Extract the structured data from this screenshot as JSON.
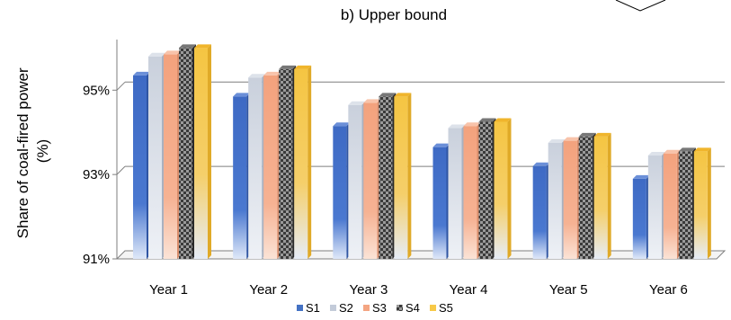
{
  "chart_data": {
    "type": "bar",
    "title": "b) Upper bound",
    "ylabel": "Share of coal-fired power\n(%)",
    "xlabel": "",
    "ylim": [
      91,
      96.2
    ],
    "yticks": [
      91,
      93,
      95
    ],
    "ytick_labels": [
      "91%",
      "93%",
      "95%"
    ],
    "grid": true,
    "legend_position": "bottom",
    "categories": [
      "Year 1",
      "Year 2",
      "Year 3",
      "Year 4",
      "Year 5",
      "Year 6"
    ],
    "series": [
      {
        "name": "S1",
        "color": "#4472c4",
        "values": [
          95.35,
          94.85,
          94.15,
          93.65,
          93.2,
          92.9
        ]
      },
      {
        "name": "S2",
        "color": "#c3cbd9",
        "values": [
          95.8,
          95.3,
          94.65,
          94.1,
          93.75,
          93.45
        ]
      },
      {
        "name": "S3",
        "color": "#f4a582",
        "values": [
          95.85,
          95.35,
          94.7,
          94.15,
          93.8,
          93.5
        ]
      },
      {
        "name": "S4",
        "color": "#404040",
        "values": [
          96.0,
          95.5,
          94.85,
          94.25,
          93.9,
          93.55
        ]
      },
      {
        "name": "S5",
        "color": "#f7c948",
        "values": [
          96.0,
          95.5,
          94.85,
          94.25,
          93.9,
          93.55
        ]
      }
    ]
  }
}
